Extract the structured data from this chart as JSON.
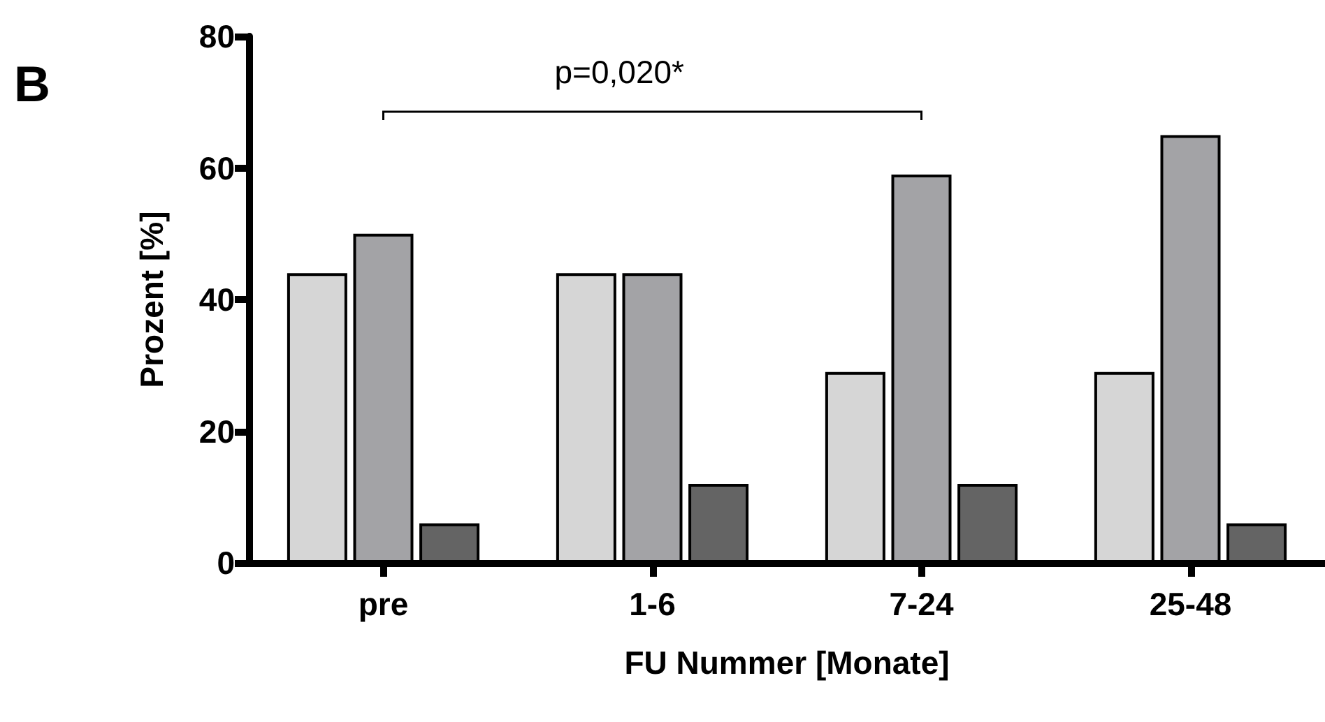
{
  "chart_data": {
    "type": "bar",
    "xlabel": "FU Nummer [Monate]",
    "ylabel": "Prozent [%]",
    "categories": [
      "pre",
      "1-6",
      "7-24",
      "25-48"
    ],
    "series": [
      {
        "color": "#d6d6d6",
        "values": [
          44,
          44,
          29,
          29
        ]
      },
      {
        "color": "#a3a3a6",
        "values": [
          50,
          44,
          59,
          65
        ]
      },
      {
        "color": "#646464",
        "values": [
          6,
          12,
          12,
          6
        ]
      }
    ],
    "ylim": [
      0,
      80
    ],
    "yticks": [
      0,
      20,
      40,
      60,
      80
    ],
    "annotations": [
      "p=0,020*",
      "B"
    ]
  }
}
